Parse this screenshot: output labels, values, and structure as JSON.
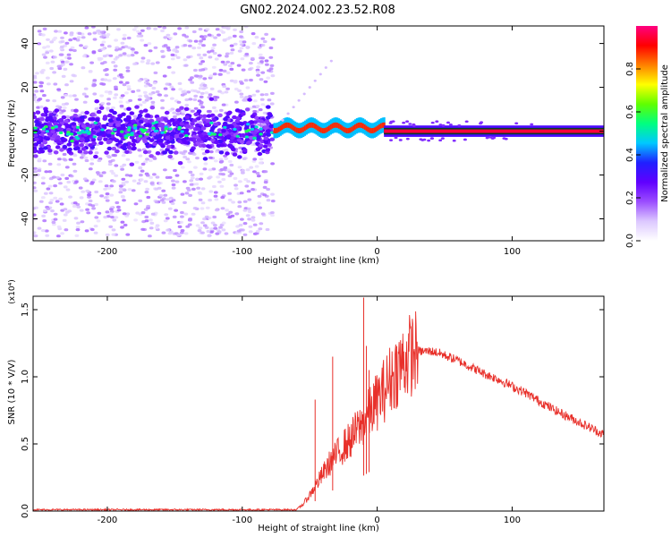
{
  "figure": {
    "title": "GN02.2024.002.23.52.R08"
  },
  "chart_data": [
    {
      "type": "heatmap",
      "xlabel": "Height of straight line (km)",
      "ylabel": "Frequency (Hz)",
      "xlim": [
        -255,
        168
      ],
      "ylim": [
        -50,
        48
      ],
      "xticks": [
        -200,
        -100,
        0,
        100
      ],
      "yticks": [
        -40,
        -20,
        0,
        20,
        40
      ],
      "colorbar": {
        "label": "Normalized spectral amplitude",
        "range": [
          0,
          1
        ],
        "ticks": [
          "0.0",
          "0.2",
          "0.4",
          "0.6",
          "0.8"
        ],
        "colors": [
          "#ffffff",
          "#dcc8ff",
          "#9b4dff",
          "#6000ff",
          "#2020ff",
          "#00c8ff",
          "#00ff80",
          "#60ff00",
          "#ffff00",
          "#ff8000",
          "#ff0000",
          "#ff0080"
        ]
      },
      "regions": [
        {
          "name": "noise",
          "x_range": [
            -255,
            -77
          ],
          "freq_spread": 48,
          "core_spread": 8,
          "level": 0.2
        },
        {
          "name": "transition",
          "x_range": [
            -77,
            5
          ],
          "freq_center": 1.5,
          "level": 0.9
        },
        {
          "name": "signal",
          "x_range": [
            5,
            168
          ],
          "freq_center": 0,
          "level": 0.95
        }
      ]
    },
    {
      "type": "line",
      "xlabel": "Height of straight line (km)",
      "ylabel": "SNR (10 * V/V)",
      "y_multiplier": "(x10⁴)",
      "xlim": [
        -255,
        168
      ],
      "ylim": [
        0,
        1.6
      ],
      "xticks": [
        -200,
        -100,
        0,
        100
      ],
      "yticks": [
        "0.0",
        "0.5",
        "1.0",
        "1.5"
      ],
      "color": "#e8302a",
      "series": [
        {
          "x": [
            -255,
            -60,
            -55,
            -50,
            -45,
            -40,
            -35,
            -30,
            -25,
            -20,
            -15,
            -10,
            -5,
            0,
            5,
            10,
            15,
            20,
            25,
            30,
            35,
            40,
            45,
            50,
            60,
            70,
            80,
            90,
            100,
            110,
            120,
            130,
            140,
            150,
            160,
            168
          ],
          "y": [
            0.01,
            0.01,
            0.05,
            0.12,
            0.2,
            0.28,
            0.36,
            0.42,
            0.48,
            0.53,
            0.6,
            0.66,
            0.74,
            0.82,
            0.9,
            0.99,
            1.06,
            1.12,
            1.17,
            1.19,
            1.19,
            1.19,
            1.18,
            1.16,
            1.12,
            1.07,
            1.02,
            0.98,
            0.93,
            0.88,
            0.82,
            0.76,
            0.71,
            0.66,
            0.61,
            0.57
          ]
        }
      ],
      "spikes": [
        {
          "x": -46,
          "y": 0.83
        },
        {
          "x": -33,
          "y": 1.15
        },
        {
          "x": -10,
          "y": 1.59
        },
        {
          "x": -8,
          "y": 1.23
        },
        {
          "x": -6,
          "y": 1.05
        }
      ]
    }
  ]
}
